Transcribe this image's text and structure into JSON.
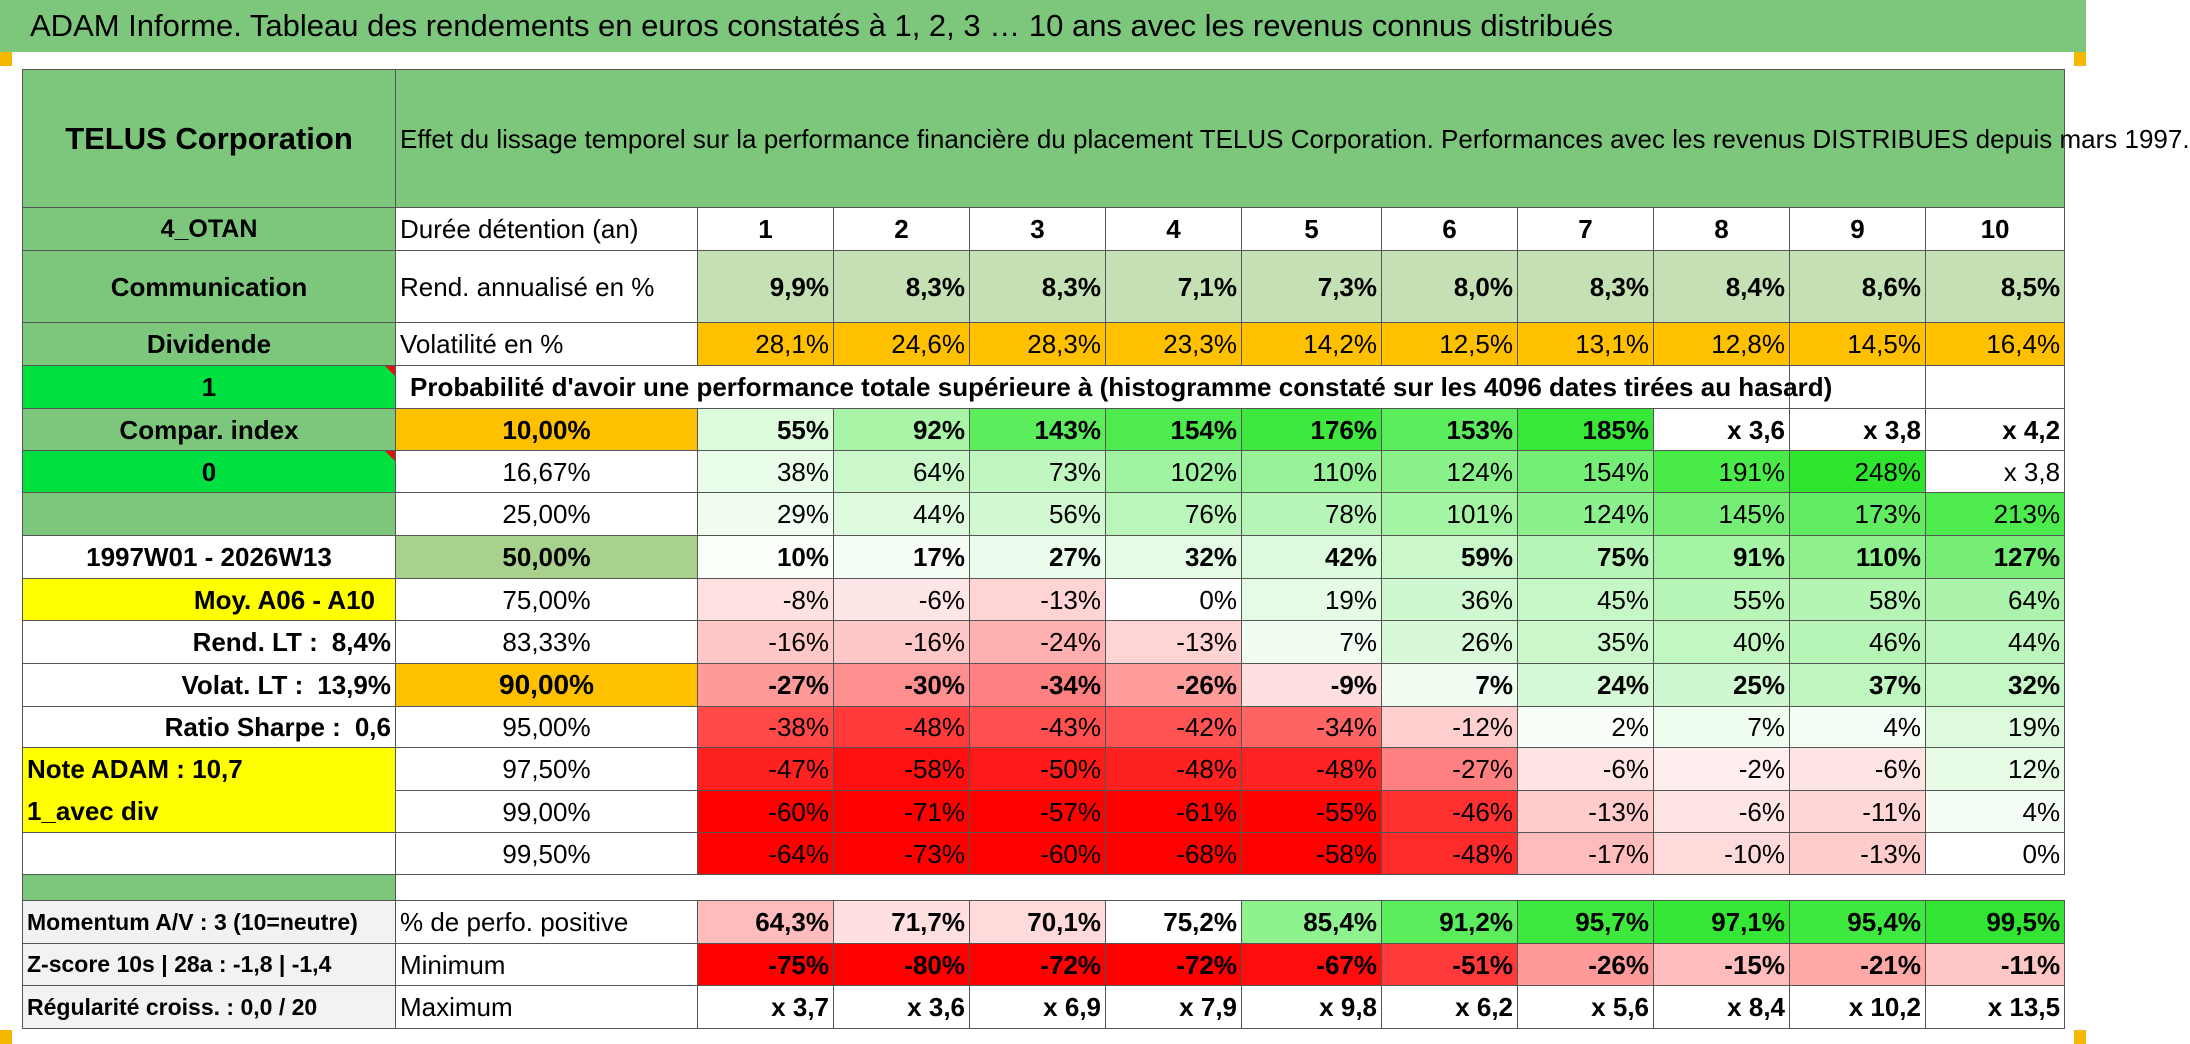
{
  "title": "ADAM Informe. Tableau des rendements en euros constatés à 1, 2, 3 … 10 ans avec les revenus connus distribués",
  "header": {
    "company": "TELUS Corporation",
    "description": "Effet du lissage temporel sur la performance financière du placement TELUS Corporation. Performances avec les revenus DISTRIBUES depuis mars 1997."
  },
  "left_labels": {
    "code": "4_OTAN",
    "sector": "Communication",
    "type": "Dividende",
    "one": "1",
    "compar_index": "Compar. index",
    "zero": "0",
    "period": "1997W01 - 2026W13",
    "moy": "Moy. A06 - A10",
    "rend_lt_label": "Rend. LT :",
    "rend_lt_value": "8,4%",
    "volat_lt_label": "Volat. LT :",
    "volat_lt_value": "13,9%",
    "sharpe_label": "Ratio Sharpe :",
    "sharpe_value": "0,6",
    "note": "Note ADAM : 10,7",
    "avec_div": "1_avec div",
    "momentum": "Momentum A/V : 3 (10=neutre)",
    "zscore": "Z-score 10s | 28a : -1,8 | -1,4",
    "regularite": "Régularité croiss. : 0,0 / 20"
  },
  "row_labels": {
    "duree": "Durée détention (an)",
    "rend": "Rend. annualisé en %",
    "vol": "Volatilité en %",
    "proba": "Probabilité d'avoir une performance totale supérieure à (histogramme constaté sur les 4096 dates tirées au hasard)",
    "positive": "% de perfo. positive",
    "minimum": "Minimum",
    "maximum": "Maximum"
  },
  "years": [
    "1",
    "2",
    "3",
    "4",
    "5",
    "6",
    "7",
    "8",
    "9",
    "10"
  ],
  "rend": [
    "9,9%",
    "8,3%",
    "8,3%",
    "7,1%",
    "7,3%",
    "8,0%",
    "8,3%",
    "8,4%",
    "8,6%",
    "8,5%"
  ],
  "vol": [
    "28,1%",
    "24,6%",
    "28,3%",
    "23,3%",
    "14,2%",
    "12,5%",
    "13,1%",
    "12,8%",
    "14,5%",
    "16,4%"
  ],
  "quantiles": [
    {
      "p": "10,00%",
      "v": [
        "55%",
        "92%",
        "143%",
        "154%",
        "176%",
        "153%",
        "185%",
        "x 3,6",
        "x 3,8",
        "x 4,2"
      ]
    },
    {
      "p": "16,67%",
      "v": [
        "38%",
        "64%",
        "73%",
        "102%",
        "110%",
        "124%",
        "154%",
        "191%",
        "248%",
        "x 3,8"
      ]
    },
    {
      "p": "25,00%",
      "v": [
        "29%",
        "44%",
        "56%",
        "76%",
        "78%",
        "101%",
        "124%",
        "145%",
        "173%",
        "213%"
      ]
    },
    {
      "p": "50,00%",
      "v": [
        "10%",
        "17%",
        "27%",
        "32%",
        "42%",
        "59%",
        "75%",
        "91%",
        "110%",
        "127%"
      ]
    },
    {
      "p": "75,00%",
      "v": [
        "-8%",
        "-6%",
        "-13%",
        "0%",
        "19%",
        "36%",
        "45%",
        "55%",
        "58%",
        "64%"
      ]
    },
    {
      "p": "83,33%",
      "v": [
        "-16%",
        "-16%",
        "-24%",
        "-13%",
        "7%",
        "26%",
        "35%",
        "40%",
        "46%",
        "44%"
      ]
    },
    {
      "p": "90,00%",
      "v": [
        "-27%",
        "-30%",
        "-34%",
        "-26%",
        "-9%",
        "7%",
        "24%",
        "25%",
        "37%",
        "32%"
      ]
    },
    {
      "p": "95,00%",
      "v": [
        "-38%",
        "-48%",
        "-43%",
        "-42%",
        "-34%",
        "-12%",
        "2%",
        "7%",
        "4%",
        "19%"
      ]
    },
    {
      "p": "97,50%",
      "v": [
        "-47%",
        "-58%",
        "-50%",
        "-48%",
        "-48%",
        "-27%",
        "-6%",
        "-2%",
        "-6%",
        "12%"
      ]
    },
    {
      "p": "99,00%",
      "v": [
        "-60%",
        "-71%",
        "-57%",
        "-61%",
        "-55%",
        "-46%",
        "-13%",
        "-6%",
        "-11%",
        "4%"
      ]
    },
    {
      "p": "99,50%",
      "v": [
        "-64%",
        "-73%",
        "-60%",
        "-68%",
        "-58%",
        "-48%",
        "-17%",
        "-10%",
        "-13%",
        "0%"
      ]
    }
  ],
  "positive": [
    "64,3%",
    "71,7%",
    "70,1%",
    "75,2%",
    "85,4%",
    "91,2%",
    "95,7%",
    "97,1%",
    "95,4%",
    "99,5%"
  ],
  "minimum": [
    "-75%",
    "-80%",
    "-72%",
    "-72%",
    "-67%",
    "-51%",
    "-26%",
    "-15%",
    "-21%",
    "-11%"
  ],
  "maximum": [
    "x 3,7",
    "x 3,6",
    "x 6,9",
    "x 7,9",
    "x 9,8",
    "x 6,2",
    "x 5,6",
    "x 8,4",
    "x 10,2",
    "x 13,5"
  ],
  "colors": {
    "title_green": "#7dc77d",
    "rend_green": "#c5e0b4",
    "vol_orange": "#ffc000",
    "label_yellow": "#ffff00",
    "bright_green": "#00e040",
    "label_red": "#e01010"
  },
  "cell_colors": {
    "quantiles": [
      [
        "#dcfcdc",
        "#a8f5a8",
        "#5ced5c",
        "#4deb4d",
        "#3ee83e",
        "#5ced5c",
        "#38e838",
        "#ffffff",
        "#ffffff",
        "#ffffff"
      ],
      [
        "#eafcea",
        "#caf8ca",
        "#c0f7c0",
        "#a0f3a0",
        "#98f298",
        "#8af08a",
        "#74ee74",
        "#48eb48",
        "#2ee52e",
        "#ffffff"
      ],
      [
        "#f0fdf0",
        "#dffbdf",
        "#d2f9d2",
        "#baf6ba",
        "#b8f6b8",
        "#a4f4a4",
        "#8cf08c",
        "#76ee76",
        "#62ec62",
        "#4deb4d"
      ],
      [
        "#fafffa",
        "#f5fef5",
        "#ecfcec",
        "#e6fbe6",
        "#dcfadc",
        "#caf8ca",
        "#b8f6b8",
        "#a4f4a4",
        "#8ef18e",
        "#76ee76"
      ],
      [
        "#ffe1e1",
        "#ffe6e6",
        "#ffd4d4",
        "#ffffff",
        "#e5fbe5",
        "#d0f8d0",
        "#c6f7c6",
        "#b8f6b8",
        "#b4f5b4",
        "#acf4ac"
      ],
      [
        "#ffc8c8",
        "#ffc8c8",
        "#ffb0b0",
        "#ffd4d4",
        "#f0fdf0",
        "#d8f9d8",
        "#caf8ca",
        "#c2f7c2",
        "#b6f5b6",
        "#bcf6bc"
      ],
      [
        "#ff9a9a",
        "#ff8e8e",
        "#ff8080",
        "#ff9c9c",
        "#ffe0e0",
        "#f0fdf0",
        "#d4f9d4",
        "#d0f8d0",
        "#bff6bf",
        "#c6f7c6"
      ],
      [
        "#ff4848",
        "#ff3a3a",
        "#ff5050",
        "#ff5252",
        "#ff6464",
        "#ffcece",
        "#f8fef8",
        "#effdef",
        "#f5fef5",
        "#ddfadd"
      ],
      [
        "#ff2020",
        "#ff0f0f",
        "#ff1a1a",
        "#ff2020",
        "#ff2222",
        "#ff8080",
        "#ffe4e4",
        "#ffeeee",
        "#ffe4e4",
        "#e7fbe7"
      ],
      [
        "#ff0000",
        "#ff0000",
        "#ff0000",
        "#ff0000",
        "#ff0303",
        "#ff3030",
        "#ffcccc",
        "#ffe4e4",
        "#ffd6d6",
        "#f5fef5"
      ],
      [
        "#ff0000",
        "#ff0000",
        "#ff0000",
        "#ff0000",
        "#ff0000",
        "#ff2a2a",
        "#ffbcbc",
        "#ffdada",
        "#ffcccc",
        "#ffffff"
      ]
    ],
    "positive": [
      "#ffbcbc",
      "#ffe0e0",
      "#ffdada",
      "#ffffff",
      "#8ef28e",
      "#5bed5b",
      "#3ee83e",
      "#36e836",
      "#40e940",
      "#33e433"
    ],
    "minimum": [
      "#ff0000",
      "#ff0000",
      "#ff0000",
      "#ff0000",
      "#ff0d0d",
      "#ff3a3a",
      "#ff9a9a",
      "#ffbcbc",
      "#ffa8a8",
      "#ffc6c6"
    ]
  }
}
